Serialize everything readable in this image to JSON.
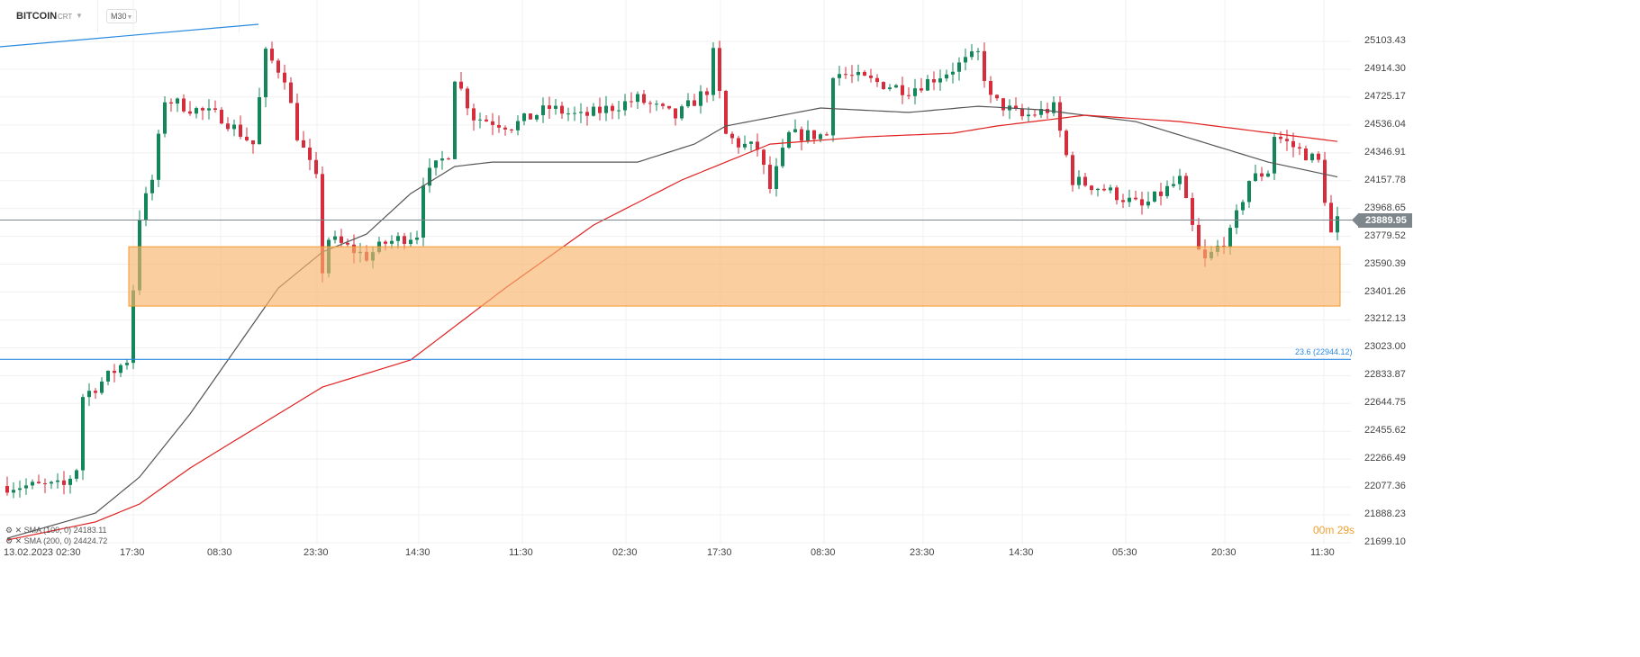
{
  "header": {
    "symbol": "BITCOIN",
    "type": "CRT",
    "timeframe": "M30"
  },
  "legend": [
    {
      "name": "SMA (100, 0)",
      "value": "24183.11"
    },
    {
      "name": "SMA (200, 0)",
      "value": "24424.72"
    }
  ],
  "current_price": "23889.95",
  "fib_label": "23.6 (22944.12)",
  "countdown": {
    "min": "00m",
    "sec": "29s"
  },
  "colors": {
    "up": "#14875a",
    "down": "#d62d3c",
    "sma100": "#555555",
    "sma200": "#e02020",
    "zone": "#f7b36b",
    "fib": "#2a8ae0",
    "trend": "#2a8ae0"
  },
  "chart_data": {
    "type": "candlestick",
    "y_ticks": [
      "25103.43",
      "24914.30",
      "24725.17",
      "24536.04",
      "24346.91",
      "24157.78",
      "23968.65",
      "23779.52",
      "23590.39",
      "23401.26",
      "23212.13",
      "23023.00",
      "22833.87",
      "22644.75",
      "22455.62",
      "22266.49",
      "22077.36",
      "21888.23",
      "21699.10"
    ],
    "ylim": [
      21699.1,
      25103.43
    ],
    "x_ticks": [
      "13.02.2023 02:30",
      "17:30",
      "08:30",
      "23:30",
      "14:30",
      "11:30",
      "02:30",
      "17:30",
      "08:30",
      "23:30",
      "14:30",
      "05:30",
      "20:30",
      "11:30"
    ],
    "bars": 212,
    "close_keypoints": [
      [
        0,
        22084
      ],
      [
        9,
        22084
      ],
      [
        11,
        22206
      ],
      [
        12,
        22695
      ],
      [
        14,
        22756
      ],
      [
        19,
        22940
      ],
      [
        20,
        23428
      ],
      [
        21,
        23917
      ],
      [
        23,
        24162
      ],
      [
        25,
        24712
      ],
      [
        29,
        24651
      ],
      [
        34,
        24590
      ],
      [
        39,
        24406
      ],
      [
        41,
        25018
      ],
      [
        44,
        24865
      ],
      [
        46,
        24467
      ],
      [
        49,
        24162
      ],
      [
        50,
        23551
      ],
      [
        51,
        23765
      ],
      [
        57,
        23642
      ],
      [
        60,
        23734
      ],
      [
        65,
        23795
      ],
      [
        66,
        24162
      ],
      [
        70,
        24345
      ],
      [
        71,
        24865
      ],
      [
        74,
        24590
      ],
      [
        80,
        24529
      ],
      [
        86,
        24651
      ],
      [
        91,
        24590
      ],
      [
        100,
        24712
      ],
      [
        106,
        24590
      ],
      [
        111,
        24773
      ],
      [
        112,
        25018
      ],
      [
        114,
        24467
      ],
      [
        116,
        24406
      ],
      [
        119,
        24376
      ],
      [
        121,
        24101
      ],
      [
        124,
        24467
      ],
      [
        130,
        24467
      ],
      [
        131,
        24895
      ],
      [
        137,
        24834
      ],
      [
        143,
        24773
      ],
      [
        149,
        24895
      ],
      [
        154,
        25018
      ],
      [
        156,
        24712
      ],
      [
        161,
        24590
      ],
      [
        166,
        24651
      ],
      [
        169,
        24162
      ],
      [
        174,
        24101
      ],
      [
        180,
        23978
      ],
      [
        186,
        24162
      ],
      [
        189,
        23673
      ],
      [
        190,
        23612
      ],
      [
        194,
        23795
      ],
      [
        197,
        24162
      ],
      [
        200,
        24223
      ],
      [
        201,
        24467
      ],
      [
        208,
        24284
      ],
      [
        210,
        23795
      ],
      [
        211,
        23887
      ]
    ],
    "sma100": [
      [
        0,
        21729
      ],
      [
        14,
        21900
      ],
      [
        21,
        22145
      ],
      [
        29,
        22573
      ],
      [
        36,
        23000
      ],
      [
        43,
        23428
      ],
      [
        50,
        23673
      ],
      [
        57,
        23795
      ],
      [
        64,
        24070
      ],
      [
        71,
        24254
      ],
      [
        77,
        24284
      ],
      [
        100,
        24284
      ],
      [
        109,
        24406
      ],
      [
        114,
        24529
      ],
      [
        129,
        24651
      ],
      [
        143,
        24621
      ],
      [
        154,
        24663
      ],
      [
        164,
        24639
      ],
      [
        179,
        24559
      ],
      [
        186,
        24467
      ],
      [
        200,
        24284
      ],
      [
        211,
        24183
      ]
    ],
    "sma200": [
      [
        0,
        21717
      ],
      [
        14,
        21840
      ],
      [
        21,
        21962
      ],
      [
        29,
        22206
      ],
      [
        43,
        22573
      ],
      [
        50,
        22756
      ],
      [
        64,
        22940
      ],
      [
        79,
        23428
      ],
      [
        93,
        23856
      ],
      [
        107,
        24162
      ],
      [
        121,
        24406
      ],
      [
        136,
        24455
      ],
      [
        150,
        24480
      ],
      [
        157,
        24529
      ],
      [
        171,
        24602
      ],
      [
        186,
        24559
      ],
      [
        211,
        24424
      ]
    ],
    "zone": [
      23709,
      23306
    ],
    "fib_level": 22944.12
  }
}
